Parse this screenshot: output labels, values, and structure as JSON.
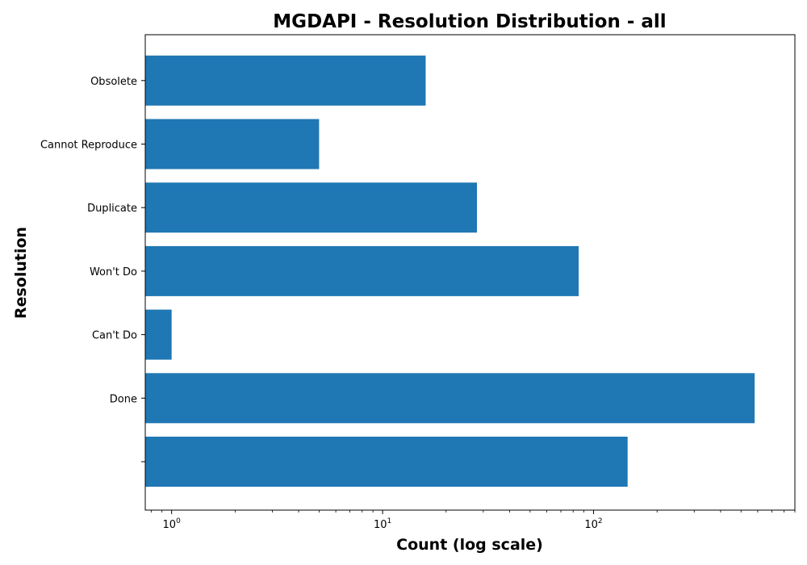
{
  "chart_data": {
    "type": "bar",
    "orientation": "horizontal",
    "title": "MGDAPI - Resolution Distribution - all",
    "xlabel": "Count (log scale)",
    "ylabel": "Resolution",
    "xscale": "log",
    "xlim": [
      0.75,
      900
    ],
    "xticks": [
      {
        "value": 1,
        "base": "10",
        "exp": "0"
      },
      {
        "value": 10,
        "base": "10",
        "exp": "1"
      },
      {
        "value": 100,
        "base": "10",
        "exp": "2"
      }
    ],
    "categories": [
      "",
      "Done",
      "Can't Do",
      "Won't Do",
      "Duplicate",
      "Cannot Reproduce",
      "Obsolete"
    ],
    "values": [
      145,
      580,
      1,
      85,
      28,
      5,
      16
    ],
    "bar_color": "#1f77b4",
    "grid": false,
    "legend": "none"
  }
}
